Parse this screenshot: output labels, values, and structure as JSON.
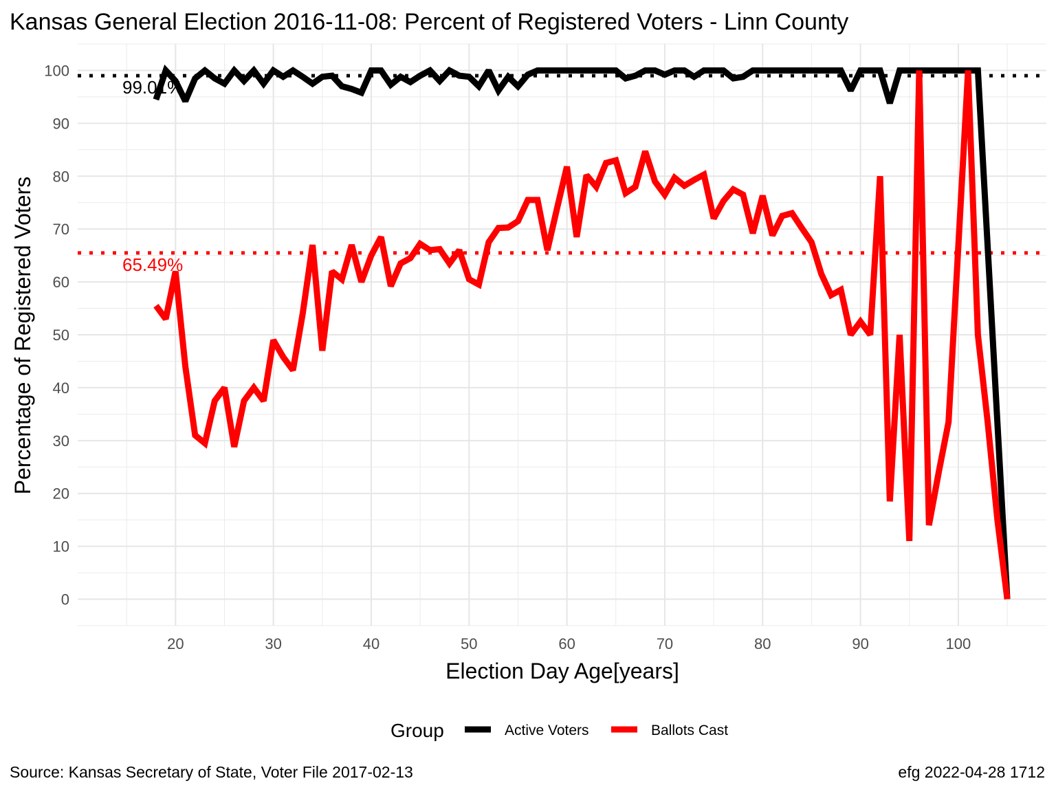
{
  "chart_data": {
    "type": "line",
    "title": "Kansas General Election 2016-11-08:  Percent of Registered Voters - Linn County",
    "xlabel": "Election Day Age[years]",
    "ylabel": "Percentage of Registered Voters",
    "xlim": [
      10,
      109
    ],
    "ylim": [
      -5,
      105
    ],
    "x_ticks": [
      "20",
      "30",
      "40",
      "50",
      "60",
      "70",
      "80",
      "90",
      "100"
    ],
    "y_ticks": [
      "0",
      "10",
      "20",
      "30",
      "40",
      "50",
      "60",
      "70",
      "80",
      "90",
      "100"
    ],
    "grid": true,
    "legend": {
      "title": "Group",
      "placement": "bottom",
      "entries": [
        {
          "label": "Active Voters",
          "color": "#000000"
        },
        {
          "label": "Ballots Cast",
          "color": "#ff0000"
        }
      ]
    },
    "reference_lines": [
      {
        "label": "99.01%",
        "value": 99.01,
        "color": "#000000"
      },
      {
        "label": "65.49%",
        "value": 65.49,
        "color": "#ff0000"
      }
    ],
    "x": [
      18,
      19,
      20,
      21,
      22,
      23,
      24,
      25,
      26,
      27,
      28,
      29,
      30,
      31,
      32,
      33,
      34,
      35,
      36,
      37,
      38,
      39,
      40,
      41,
      42,
      43,
      44,
      45,
      46,
      47,
      48,
      49,
      50,
      51,
      52,
      53,
      54,
      55,
      56,
      57,
      58,
      59,
      60,
      61,
      62,
      63,
      64,
      65,
      66,
      67,
      68,
      69,
      70,
      71,
      72,
      73,
      74,
      75,
      76,
      77,
      78,
      79,
      80,
      81,
      82,
      83,
      84,
      85,
      86,
      87,
      88,
      89,
      90,
      91,
      92,
      93,
      94,
      95,
      96,
      97,
      98,
      99,
      100,
      101,
      102,
      103,
      104,
      105
    ],
    "series": [
      {
        "name": "Active Voters",
        "color": "#000000",
        "values": [
          94.5,
          100,
          98,
          94.2,
          98.5,
          100,
          98.5,
          97.5,
          100,
          98,
          100,
          97.5,
          100,
          98.8,
          100,
          98.8,
          97.5,
          98.8,
          99,
          97,
          96.5,
          95.8,
          100,
          100,
          97.3,
          98.8,
          97.8,
          99,
          100,
          98,
          100,
          99,
          98.8,
          97,
          100,
          96.2,
          98.8,
          97,
          99.2,
          100,
          100,
          100,
          100,
          100,
          100,
          100,
          100,
          100,
          98.5,
          99,
          100,
          100,
          99.2,
          100,
          100,
          98.8,
          100,
          100,
          100,
          98.5,
          98.8,
          100,
          100,
          100,
          100,
          100,
          100,
          100,
          100,
          100,
          100,
          96.2,
          100,
          100,
          100,
          93.8,
          100,
          100,
          100,
          100,
          100,
          100,
          100,
          100,
          100,
          66.7,
          33.3,
          0
        ]
      },
      {
        "name": "Ballots Cast",
        "color": "#ff0000",
        "values": [
          55.5,
          53,
          62,
          44,
          31,
          29.5,
          37.5,
          40,
          28.8,
          37.5,
          40,
          37.5,
          49,
          45.8,
          43.3,
          54,
          67,
          47,
          62,
          60.5,
          67,
          60,
          65,
          68.5,
          59.2,
          63.5,
          64.5,
          67.2,
          66,
          66.2,
          63.5,
          66,
          60.5,
          59.5,
          67.5,
          70.2,
          70.3,
          71.5,
          75.5,
          75.5,
          66,
          74,
          81.8,
          68.5,
          80.2,
          78,
          82.5,
          83,
          76.8,
          78,
          84.7,
          79,
          76.5,
          79.7,
          78.2,
          79.3,
          80.3,
          72,
          75.3,
          77.5,
          76.5,
          69.2,
          76.3,
          68.8,
          72.5,
          73,
          70.2,
          67.5,
          61.5,
          57.5,
          58.5,
          50,
          52.5,
          50,
          80,
          18.5,
          50,
          11,
          100,
          14,
          24,
          33.5,
          66.7,
          100,
          50,
          33.5,
          15,
          0
        ]
      }
    ]
  },
  "caption_left": "Source:  Kansas Secretary of State, Voter File  2017-02-13",
  "caption_right": "efg 2022-04-28 1712"
}
